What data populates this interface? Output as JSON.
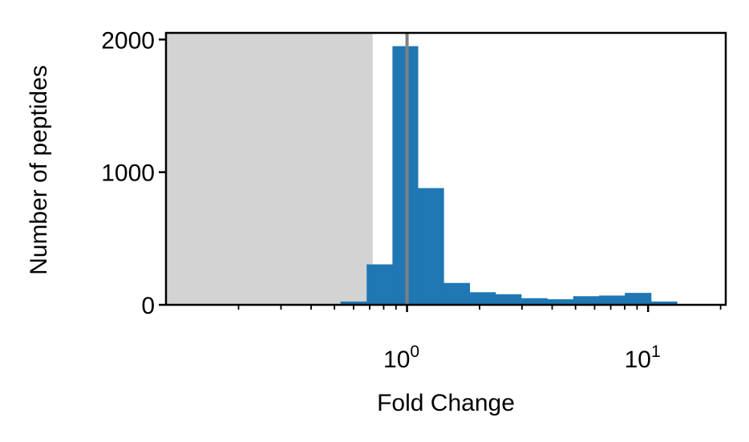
{
  "chart_data": {
    "type": "bar",
    "x_scale": "log",
    "xlabel": "Fold Change",
    "ylabel": "Number of peptides",
    "xlim": [
      0.1,
      21
    ],
    "ylim": [
      0,
      2050
    ],
    "x_ticks": [
      {
        "value": 1,
        "base": "10",
        "exp": "0"
      },
      {
        "value": 10,
        "base": "10",
        "exp": "1"
      }
    ],
    "y_ticks": [
      {
        "value": 0,
        "label": "0"
      },
      {
        "value": 1000,
        "label": "1000"
      },
      {
        "value": 2000,
        "label": "2000"
      }
    ],
    "shaded_region": {
      "from": 0.1,
      "to": 0.72,
      "color": "#d3d3d3"
    },
    "reference_line": {
      "x": 1,
      "color": "#808080"
    },
    "bar_color": "#1f77b4",
    "bins": [
      {
        "x0": 0.42,
        "x1": 0.53,
        "count": 5
      },
      {
        "x0": 0.53,
        "x1": 0.68,
        "count": 25
      },
      {
        "x0": 0.68,
        "x1": 0.87,
        "count": 305
      },
      {
        "x0": 0.87,
        "x1": 1.11,
        "count": 1950
      },
      {
        "x0": 1.11,
        "x1": 1.42,
        "count": 880
      },
      {
        "x0": 1.42,
        "x1": 1.82,
        "count": 165
      },
      {
        "x0": 1.82,
        "x1": 2.33,
        "count": 95
      },
      {
        "x0": 2.33,
        "x1": 2.98,
        "count": 80
      },
      {
        "x0": 2.98,
        "x1": 3.82,
        "count": 50
      },
      {
        "x0": 3.82,
        "x1": 4.89,
        "count": 42
      },
      {
        "x0": 4.89,
        "x1": 6.26,
        "count": 65
      },
      {
        "x0": 6.26,
        "x1": 8.01,
        "count": 70
      },
      {
        "x0": 8.01,
        "x1": 10.3,
        "count": 90
      },
      {
        "x0": 10.3,
        "x1": 13.2,
        "count": 25
      },
      {
        "x0": 13.2,
        "x1": 16.9,
        "count": 3
      }
    ]
  }
}
